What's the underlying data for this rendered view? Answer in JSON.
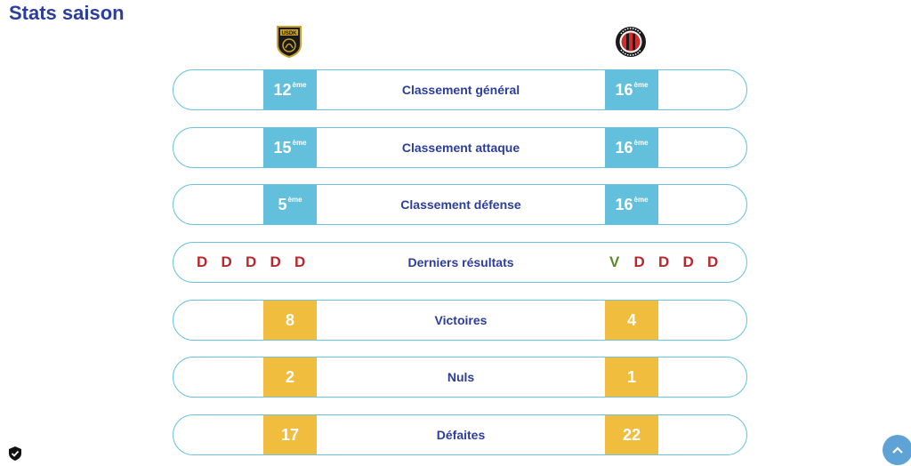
{
  "page": {
    "title": "Stats saison"
  },
  "teams": {
    "home": {
      "logo_icon": "usdk-club-logo-icon",
      "logo_text": "USDK"
    },
    "away": {
      "logo_icon": "us-ivry-club-logo-icon",
      "logo_text": "US IVRY HANDBALL"
    }
  },
  "colors": {
    "title": "#2c3e9b",
    "rank_cell": "#62c0dc",
    "count_cell": "#f0bd3f",
    "row_border": "#6cc3e0",
    "defeat": "#b8282a",
    "victory": "#5a8a2c",
    "scroll_button": "#5fa3d6"
  },
  "stats": [
    {
      "label": "Classement général",
      "home": "12",
      "home_sup": "ème",
      "away": "16",
      "away_sup": "ème"
    },
    {
      "label": "Classement attaque",
      "home": "15",
      "home_sup": "ème",
      "away": "16",
      "away_sup": "ème"
    },
    {
      "label": "Classement défense",
      "home": "5",
      "home_sup": "ème",
      "away": "16",
      "away_sup": "ème"
    },
    {
      "label": "Derniers résultats",
      "home_results": [
        "D",
        "D",
        "D",
        "D",
        "D"
      ],
      "away_results": [
        "V",
        "D",
        "D",
        "D",
        "D"
      ]
    },
    {
      "label": "Victoires",
      "home": "8",
      "away": "4"
    },
    {
      "label": "Nuls",
      "home": "2",
      "away": "1"
    },
    {
      "label": "Défaites",
      "home": "17",
      "away": "22"
    }
  ],
  "icons": {
    "privacy": "shield-check-icon",
    "scroll_top": "chevron-up-icon"
  }
}
